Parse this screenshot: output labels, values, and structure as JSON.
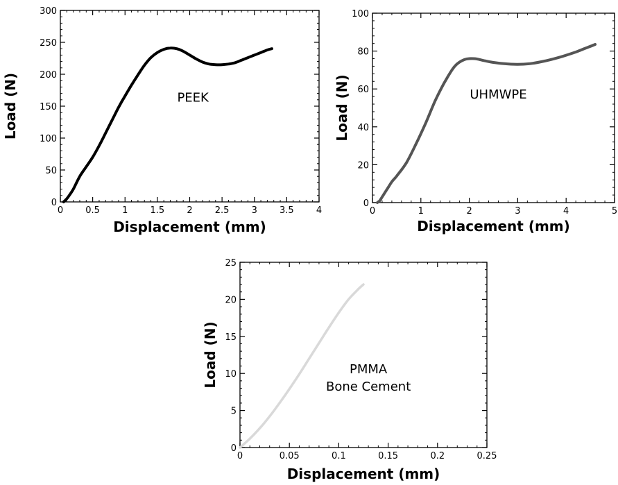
{
  "chart_data": [
    {
      "type": "line",
      "xlabel": "Displacement (mm)",
      "ylabel": "Load (N)",
      "xlim": [
        0,
        4
      ],
      "ylim": [
        0,
        300
      ],
      "xticks": [
        0,
        0.5,
        1,
        1.5,
        2,
        2.5,
        3,
        3.5,
        4
      ],
      "xtick_labels": [
        "0",
        "0.5",
        "1",
        "1.5",
        "2",
        "2.5",
        "3",
        "3.5",
        "4"
      ],
      "yticks": [
        0,
        50,
        100,
        150,
        200,
        250,
        300
      ],
      "ytick_labels": [
        "0",
        "50",
        "100",
        "150",
        "200",
        "250",
        "300"
      ],
      "annotations": [
        {
          "text": "PEEK",
          "x": 2.05,
          "y": 157
        }
      ],
      "grid": false,
      "series": [
        {
          "color": "#000000",
          "x": [
            0.05,
            0.1,
            0.15,
            0.2,
            0.3,
            0.4,
            0.5,
            0.6,
            0.7,
            0.8,
            0.9,
            1.0,
            1.1,
            1.2,
            1.3,
            1.4,
            1.5,
            1.6,
            1.7,
            1.8,
            1.9,
            2.0,
            2.1,
            2.2,
            2.3,
            2.4,
            2.5,
            2.6,
            2.7,
            2.8,
            2.9,
            3.0,
            3.1,
            3.2,
            3.27
          ],
          "y": [
            0,
            5,
            12,
            20,
            40,
            55,
            70,
            88,
            108,
            128,
            148,
            166,
            183,
            199,
            214,
            226,
            234,
            239,
            241,
            240,
            236,
            230,
            224,
            219,
            216,
            215,
            215,
            216,
            218,
            222,
            226,
            230,
            234,
            238,
            240
          ]
        }
      ]
    },
    {
      "type": "line",
      "xlabel": "Displacement (mm)",
      "ylabel": "Load (N)",
      "xlim": [
        0,
        5
      ],
      "ylim": [
        0,
        100
      ],
      "xticks": [
        0,
        1,
        2,
        3,
        4,
        5
      ],
      "xtick_labels": [
        "0",
        "1",
        "2",
        "3",
        "4",
        "5"
      ],
      "yticks": [
        0,
        20,
        40,
        60,
        80,
        100
      ],
      "ytick_labels": [
        "0",
        "20",
        "40",
        "60",
        "80",
        "100"
      ],
      "annotations": [
        {
          "text": "UHMWPE",
          "x": 2.6,
          "y": 55
        }
      ],
      "grid": false,
      "series": [
        {
          "color": "#555555",
          "x": [
            0.1,
            0.15,
            0.2,
            0.3,
            0.4,
            0.5,
            0.7,
            0.9,
            1.1,
            1.3,
            1.5,
            1.7,
            1.9,
            2.1,
            2.3,
            2.5,
            2.7,
            3.0,
            3.3,
            3.6,
            3.9,
            4.2,
            4.4,
            4.6
          ],
          "y": [
            0,
            1,
            3,
            7,
            11,
            14,
            21,
            31,
            42,
            54,
            64,
            72,
            75.5,
            76,
            75,
            74,
            73.4,
            73,
            73.5,
            75,
            77,
            79.5,
            81.5,
            83.5
          ]
        }
      ]
    },
    {
      "type": "line",
      "xlabel": "Displacement (mm)",
      "ylabel": "Load (N)",
      "xlim": [
        0,
        0.25
      ],
      "ylim": [
        0,
        25
      ],
      "xticks": [
        0,
        0.05,
        0.1,
        0.15,
        0.2,
        0.25
      ],
      "xtick_labels": [
        "0",
        "0.05",
        "0.1",
        "0.15",
        "0.2",
        "0.25"
      ],
      "yticks": [
        0,
        5,
        10,
        15,
        20,
        25
      ],
      "ytick_labels": [
        "0",
        "5",
        "10",
        "15",
        "20",
        "25"
      ],
      "annotations": [
        {
          "text": "PMMA",
          "x": 0.13,
          "y": 10
        },
        {
          "text": "Bone Cement",
          "x": 0.13,
          "y": 7.7
        }
      ],
      "grid": false,
      "series": [
        {
          "color": "#d9d9d9",
          "x": [
            0,
            0.01,
            0.02,
            0.03,
            0.04,
            0.05,
            0.06,
            0.07,
            0.08,
            0.09,
            0.1,
            0.11,
            0.12,
            0.125
          ],
          "y": [
            0,
            1.2,
            2.6,
            4.2,
            6.0,
            7.9,
            9.9,
            12.0,
            14.1,
            16.2,
            18.2,
            20.0,
            21.4,
            22.0
          ]
        }
      ]
    }
  ]
}
